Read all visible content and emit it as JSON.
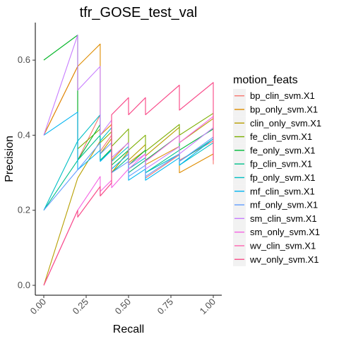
{
  "chart_data": {
    "type": "line",
    "title": "tfr_GOSE_test_val",
    "xlabel": "Recall",
    "ylabel": "Precision",
    "xlim": [
      0,
      1
    ],
    "ylim": [
      0,
      0.7
    ],
    "x_ticks": [
      "0.00",
      "0.25",
      "0.50",
      "0.75",
      "1.00"
    ],
    "y_ticks": [
      "0.0",
      "0.2",
      "0.4",
      "0.6"
    ],
    "x_tick_values": [
      0,
      0.25,
      0.5,
      0.75,
      1
    ],
    "y_tick_values": [
      0,
      0.2,
      0.4,
      0.6
    ],
    "grid": false,
    "legend_title": "motion_feats",
    "legend_position": "right",
    "series": [
      {
        "name": "bp_clin_svm.X1",
        "color": "#F8766D",
        "points": [
          [
            0,
            0.4
          ],
          [
            0.2,
            0.5833
          ],
          [
            0.2,
            0.3333
          ],
          [
            0.333,
            0.4545
          ],
          [
            0.333,
            0.3571
          ],
          [
            0.4,
            0.4
          ],
          [
            0.4,
            0.3
          ],
          [
            0.5,
            0.3571
          ],
          [
            0.5,
            0.3
          ],
          [
            0.6,
            0.3333
          ],
          [
            0.6,
            0.2857
          ],
          [
            0.8,
            0.3478
          ],
          [
            0.8,
            0.3333
          ],
          [
            1,
            0.3846
          ],
          [
            1,
            0.3226
          ]
        ]
      },
      {
        "name": "bp_only_svm.X1",
        "color": "#DE8C00",
        "points": [
          [
            0,
            0.4
          ],
          [
            0.2,
            0.5833
          ],
          [
            0.333,
            0.6429
          ],
          [
            0.333,
            0.4
          ],
          [
            0.4,
            0.4286
          ],
          [
            0.4,
            0.3333
          ],
          [
            0.5,
            0.381
          ],
          [
            0.5,
            0.3261
          ],
          [
            0.6,
            0.36
          ],
          [
            0.6,
            0.3214
          ],
          [
            0.8,
            0.3704
          ],
          [
            0.8,
            0.3
          ],
          [
            1,
            0.35
          ]
        ]
      },
      {
        "name": "clin_only_svm.X1",
        "color": "#B79F00",
        "points": [
          [
            0,
            0
          ],
          [
            0.2,
            0.2857
          ],
          [
            0.333,
            0.3846
          ],
          [
            0.333,
            0.35
          ],
          [
            0.4,
            0.3913
          ],
          [
            0.4,
            0.3
          ],
          [
            0.5,
            0.3571
          ],
          [
            0.5,
            0.3333
          ],
          [
            0.6,
            0.375
          ],
          [
            0.6,
            0.3448
          ],
          [
            0.8,
            0.4211
          ],
          [
            0.8,
            0.38
          ],
          [
            1,
            0.4444
          ]
        ]
      },
      {
        "name": "fe_clin_svm.X1",
        "color": "#7CAE00",
        "points": [
          [
            0,
            0.6
          ],
          [
            0.2,
            0.6667
          ],
          [
            0.2,
            0.3636
          ],
          [
            0.333,
            0.4167
          ],
          [
            0.333,
            0.38
          ],
          [
            0.4,
            0.4091
          ],
          [
            0.4,
            0.37
          ],
          [
            0.5,
            0.4167
          ],
          [
            0.5,
            0.36
          ],
          [
            0.6,
            0.4
          ],
          [
            0.6,
            0.3571
          ],
          [
            0.8,
            0.4286
          ],
          [
            0.8,
            0.4
          ],
          [
            1,
            0.4583
          ]
        ]
      },
      {
        "name": "fe_only_svm.X1",
        "color": "#00BA38",
        "points": [
          [
            0,
            0.6
          ],
          [
            0.2,
            0.6667
          ],
          [
            0.2,
            0.3333
          ],
          [
            0.333,
            0.4286
          ],
          [
            0.333,
            0.3333
          ],
          [
            0.4,
            0.3636
          ],
          [
            0.4,
            0.32
          ],
          [
            0.5,
            0.36
          ],
          [
            0.5,
            0.32
          ],
          [
            0.6,
            0.36
          ],
          [
            0.6,
            0.3333
          ],
          [
            0.8,
            0.4
          ],
          [
            0.8,
            0.36
          ],
          [
            1,
            0.4167
          ]
        ]
      },
      {
        "name": "fp_clin_svm.X1",
        "color": "#00C08B",
        "points": [
          [
            0,
            0.2
          ],
          [
            0.2,
            0.3333
          ],
          [
            0.333,
            0.4
          ],
          [
            0.333,
            0.3333
          ],
          [
            0.4,
            0.36
          ],
          [
            0.4,
            0.3
          ],
          [
            0.5,
            0.34
          ],
          [
            0.5,
            0.3
          ],
          [
            0.6,
            0.3333
          ],
          [
            0.6,
            0.3
          ],
          [
            0.8,
            0.36
          ],
          [
            0.8,
            0.33
          ],
          [
            1,
            0.39
          ]
        ]
      },
      {
        "name": "fp_only_svm.X1",
        "color": "#00BFC4",
        "points": [
          [
            0,
            0.2
          ],
          [
            0.2,
            0.3846
          ],
          [
            0.333,
            0.4545
          ],
          [
            0.333,
            0.3846
          ],
          [
            0.4,
            0.42
          ],
          [
            0.4,
            0.33
          ],
          [
            0.5,
            0.37
          ],
          [
            0.5,
            0.31
          ],
          [
            0.6,
            0.34
          ],
          [
            0.6,
            0.3
          ],
          [
            0.8,
            0.35
          ],
          [
            0.8,
            0.32
          ],
          [
            1,
            0.38
          ]
        ]
      },
      {
        "name": "mf_clin_svm.X1",
        "color": "#00B4F0",
        "points": [
          [
            0,
            0.4
          ],
          [
            0.2,
            0.4615
          ],
          [
            0.2,
            0.3077
          ],
          [
            0.333,
            0.36
          ],
          [
            0.333,
            0.33
          ],
          [
            0.4,
            0.36
          ],
          [
            0.4,
            0.31
          ],
          [
            0.5,
            0.35
          ],
          [
            0.5,
            0.28
          ],
          [
            0.6,
            0.31
          ],
          [
            0.6,
            0.28
          ],
          [
            0.8,
            0.34
          ],
          [
            0.8,
            0.32
          ],
          [
            1,
            0.39
          ]
        ]
      },
      {
        "name": "mf_only_svm.X1",
        "color": "#619CFF",
        "points": [
          [
            0,
            0.2
          ],
          [
            0.2,
            0.3077
          ],
          [
            0.333,
            0.38
          ],
          [
            0.333,
            0.35
          ],
          [
            0.4,
            0.38
          ],
          [
            0.4,
            0.3
          ],
          [
            0.5,
            0.33
          ],
          [
            0.5,
            0.29
          ],
          [
            0.6,
            0.32
          ],
          [
            0.6,
            0.29
          ],
          [
            0.8,
            0.35
          ],
          [
            0.8,
            0.33
          ],
          [
            1,
            0.395
          ]
        ]
      },
      {
        "name": "sm_clin_svm.X1",
        "color": "#C77CFF",
        "points": [
          [
            0,
            0.4
          ],
          [
            0.2,
            0.6667
          ],
          [
            0.2,
            0.52
          ],
          [
            0.333,
            0.5833
          ],
          [
            0.333,
            0.4
          ],
          [
            0.4,
            0.44
          ],
          [
            0.4,
            0.34
          ],
          [
            0.5,
            0.38
          ],
          [
            0.5,
            0.32
          ],
          [
            0.6,
            0.35
          ],
          [
            0.6,
            0.31
          ],
          [
            0.8,
            0.37
          ],
          [
            0.8,
            0.35
          ],
          [
            1,
            0.42
          ]
        ]
      },
      {
        "name": "sm_only_svm.X1",
        "color": "#F564E3",
        "points": [
          [
            0,
            0
          ],
          [
            0.2,
            0.2
          ],
          [
            0.333,
            0.29
          ],
          [
            0.333,
            0.25
          ],
          [
            0.4,
            0.28
          ],
          [
            0.4,
            0.26
          ],
          [
            0.5,
            0.31
          ],
          [
            0.5,
            0.31
          ],
          [
            0.6,
            0.35
          ],
          [
            0.6,
            0.33
          ],
          [
            0.8,
            0.4
          ],
          [
            0.8,
            0.38
          ],
          [
            1,
            0.45
          ]
        ]
      },
      {
        "name": "wv_clin_svm.X1",
        "color": "#FF64B0",
        "points": [
          [
            0,
            0
          ],
          [
            0.2,
            0.2
          ],
          [
            0.2,
            0.1818
          ],
          [
            0.333,
            0.2632
          ],
          [
            0.333,
            0.2381
          ],
          [
            0.4,
            0.2727
          ],
          [
            0.4,
            0.4545
          ],
          [
            0.5,
            0.5
          ],
          [
            0.5,
            0.4545
          ],
          [
            0.6,
            0.5
          ],
          [
            0.6,
            0.4545
          ],
          [
            0.8,
            0.5333
          ],
          [
            0.8,
            0.4667
          ],
          [
            1,
            0.5405
          ],
          [
            1,
            0.3333
          ]
        ]
      },
      {
        "name": "wv_only_svm.X1",
        "color": "#F8508A",
        "points": [
          [
            0,
            0
          ],
          [
            0.2,
            0.2
          ],
          [
            0.2,
            0.1818
          ],
          [
            0.333,
            0.2632
          ],
          [
            0.333,
            0.2381
          ],
          [
            0.4,
            0.2727
          ],
          [
            0.4,
            0.4545
          ],
          [
            0.5,
            0.5
          ],
          [
            0.5,
            0.4545
          ],
          [
            0.6,
            0.5
          ],
          [
            0.6,
            0.4545
          ],
          [
            0.8,
            0.5333
          ],
          [
            0.8,
            0.4667
          ],
          [
            1,
            0.5405
          ],
          [
            1,
            0.3333
          ]
        ]
      }
    ]
  }
}
